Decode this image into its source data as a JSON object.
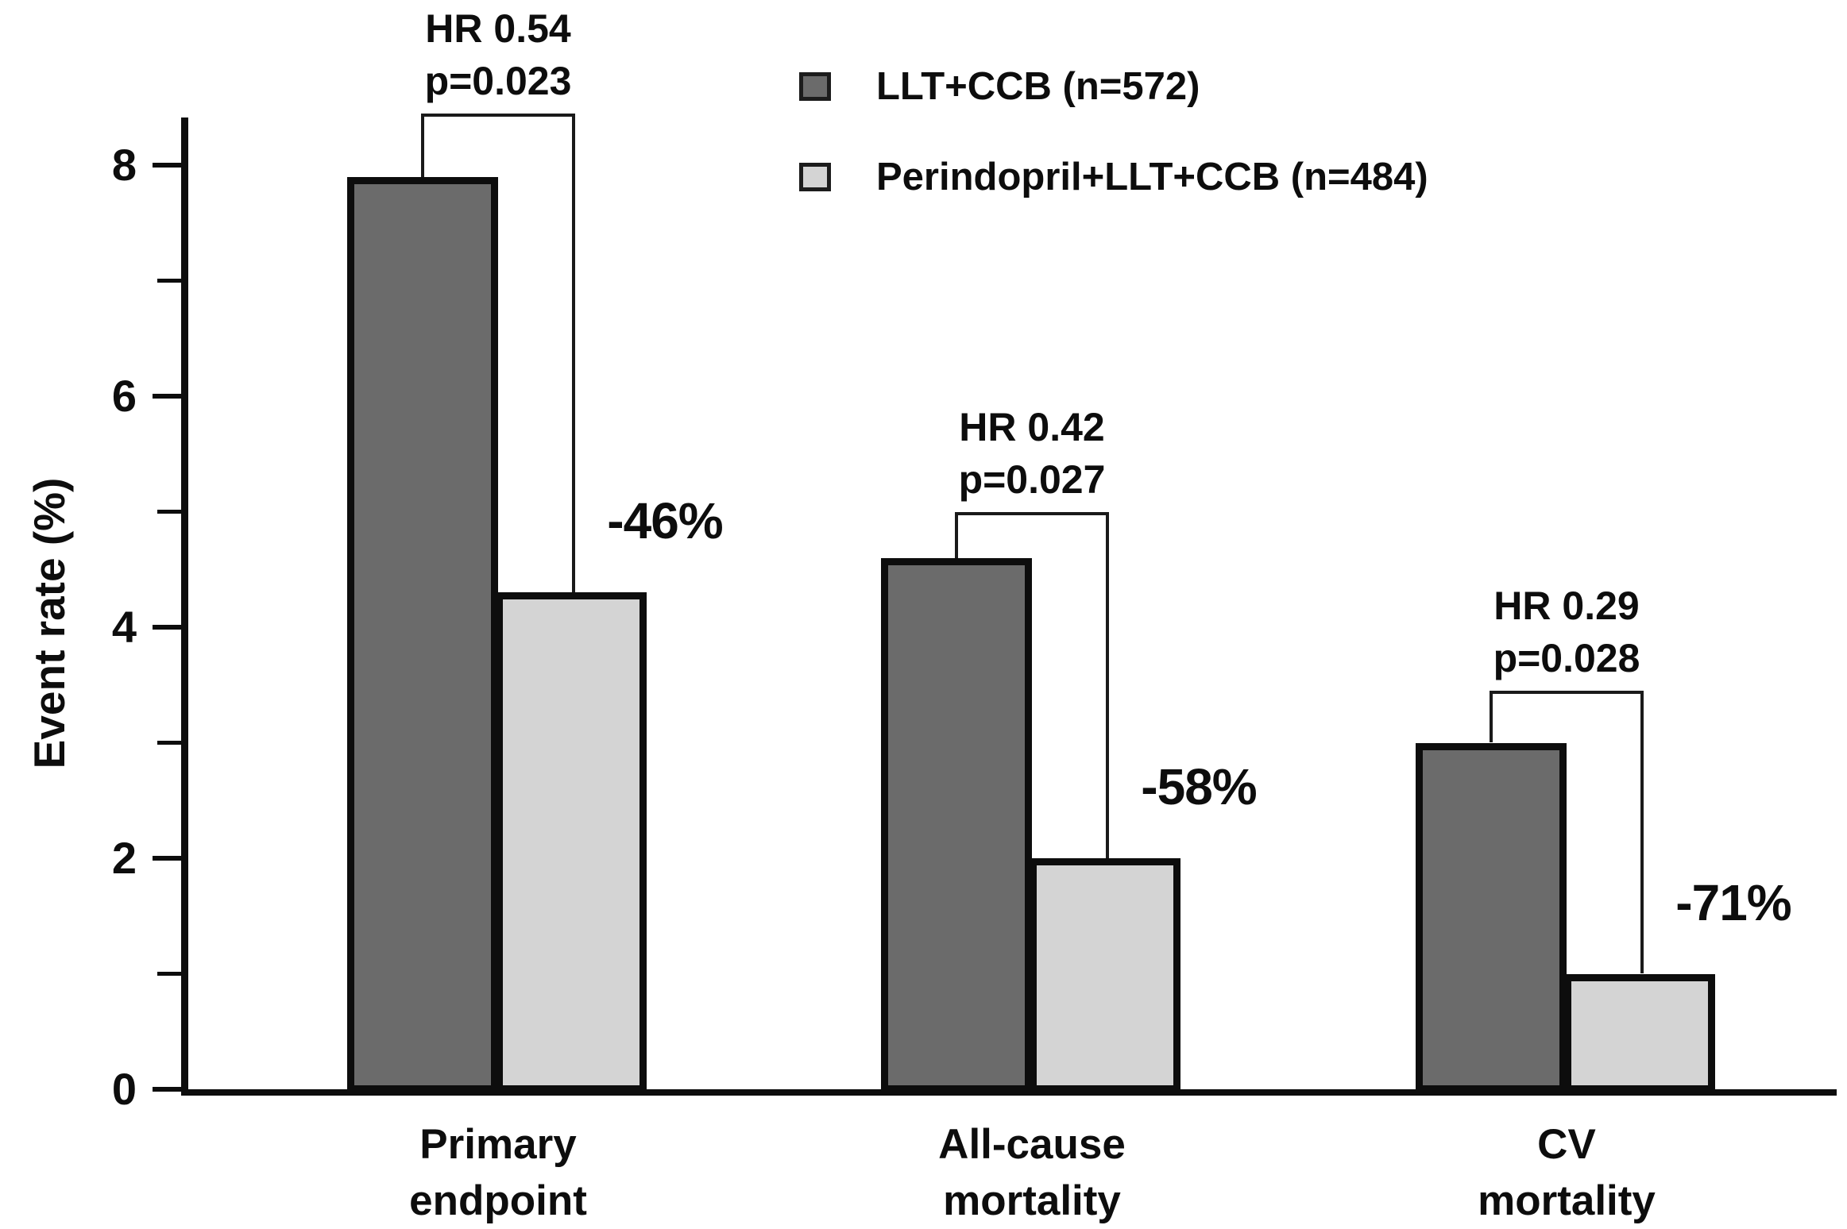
{
  "chart_data": {
    "type": "bar",
    "title": "",
    "ylabel": "Event rate (%)",
    "ylim": [
      0,
      9
    ],
    "yticks_labeled": [
      0,
      2,
      4,
      6,
      8
    ],
    "yticks_minor": [
      1,
      3,
      5,
      7
    ],
    "grid": "off",
    "legend_position": "top-right-inside",
    "categories": [
      "Primary\nendpoint",
      "All-cause\nmortality",
      "CV\nmortality"
    ],
    "series": [
      {
        "name": "LLT+CCB (n=572)",
        "color": "#6b6b6b",
        "values": [
          7.9,
          4.6,
          3.0
        ]
      },
      {
        "name": "Perindopril+LLT+CCB (n=484)",
        "color": "#d4d4d4",
        "values": [
          4.3,
          2.0,
          1.0
        ]
      }
    ],
    "annotations": [
      {
        "hr": "HR 0.54",
        "p": "p=0.023",
        "reduction": "-46%",
        "bracket_top": 8.45
      },
      {
        "hr": "HR 0.42",
        "p": "p=0.027",
        "reduction": "-58%",
        "bracket_top": 5.0
      },
      {
        "hr": "HR 0.29",
        "p": "p=0.028",
        "reduction": "-71%",
        "bracket_top": 3.45
      }
    ],
    "colors": {
      "axis": "#0d0d0d",
      "bar_border": "#0d0d0d",
      "bracket": "#1a1a1a",
      "background": "#ffffff"
    }
  }
}
